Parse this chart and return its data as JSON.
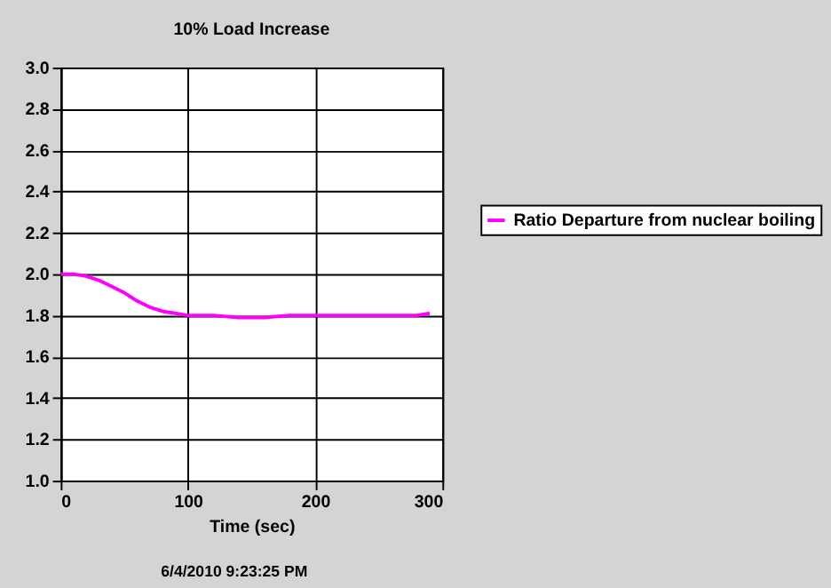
{
  "chart_data": {
    "type": "line",
    "title": "10% Load Increase",
    "xlabel": "Time (sec)",
    "x": [
      0,
      10,
      20,
      30,
      40,
      50,
      60,
      70,
      80,
      90,
      100,
      120,
      140,
      160,
      180,
      200,
      250,
      280,
      290
    ],
    "series": [
      {
        "name": "Ratio Departure from nuclear boiling",
        "color": "#ff00ff",
        "values": [
          2.0,
          2.0,
          1.99,
          1.97,
          1.94,
          1.91,
          1.87,
          1.84,
          1.82,
          1.81,
          1.8,
          1.8,
          1.79,
          1.79,
          1.8,
          1.8,
          1.8,
          1.8,
          1.81
        ]
      }
    ],
    "xlim": [
      0,
      300
    ],
    "xticks": [
      0,
      100,
      200,
      300
    ],
    "ylim": [
      1.0,
      3.0
    ],
    "yticks": [
      {
        "value": 1.0,
        "label": "1.0"
      },
      1.2,
      1.4,
      1.6,
      1.8,
      {
        "value": 2.0,
        "label": "2.0"
      },
      2.2,
      2.4,
      2.6,
      2.8,
      {
        "value": 3.0,
        "label": "3.0"
      }
    ],
    "grid": true,
    "legend": "right",
    "marker": "none",
    "line_style": "solid",
    "annotations": [
      "6/4/2010 9:23:25 PM"
    ]
  }
}
